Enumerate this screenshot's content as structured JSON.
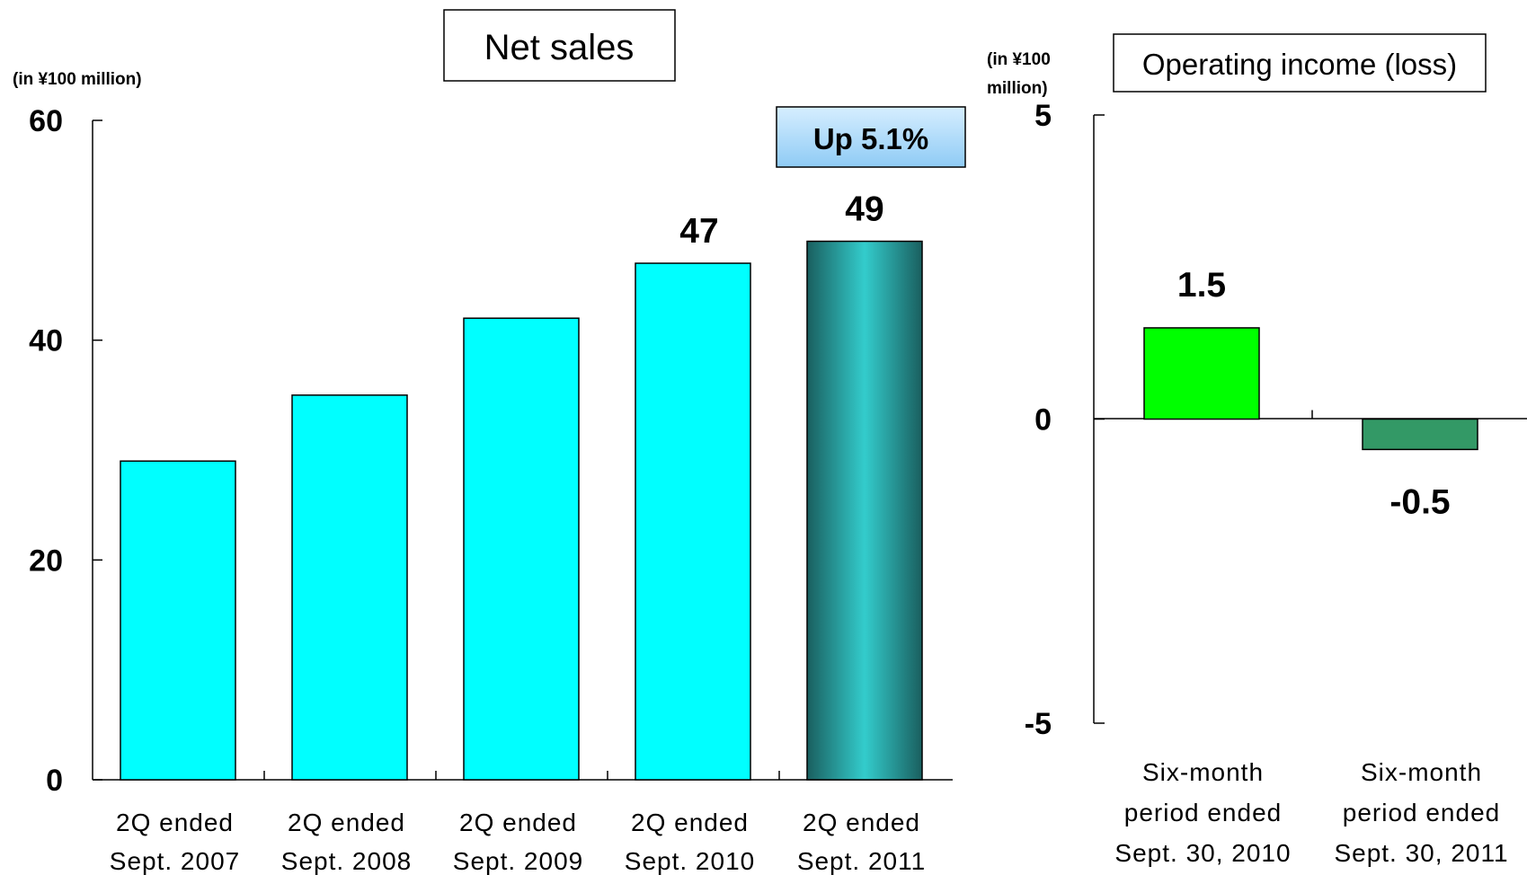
{
  "chart_data": [
    {
      "type": "bar",
      "title": "Net sales",
      "ylabel": "(in ¥100 million)",
      "ylim": [
        0,
        60
      ],
      "yticks": [
        "0",
        "20",
        "40",
        "60"
      ],
      "categories": [
        [
          "2Q ended",
          "Sept. 2007"
        ],
        [
          "2Q ended",
          "Sept. 2008"
        ],
        [
          "2Q ended",
          "Sept. 2009"
        ],
        [
          "2Q ended",
          "Sept. 2010"
        ],
        [
          "2Q ended",
          "Sept. 2011"
        ]
      ],
      "values": [
        29,
        35,
        42,
        47,
        49
      ],
      "data_labels": [
        "",
        "",
        "",
        "47",
        "49"
      ],
      "annotation": "Up 5.1%",
      "grid": false,
      "colors": {
        "bar": "#00FFFF",
        "highlight_dark": "#1A5F5F",
        "highlight_light": "#33CCCC",
        "badge_top": "#D6EEFF",
        "badge_bottom": "#8FCBF5"
      }
    },
    {
      "type": "bar",
      "title": "Operating income (loss)",
      "ylabel": "(in ¥100 million)",
      "ylabel_lines": [
        "(in ¥100",
        "million)"
      ],
      "ylim": [
        -5,
        5
      ],
      "yticks": [
        "-5",
        "0",
        "5"
      ],
      "categories": [
        [
          "Six-month",
          "period ended",
          "Sept. 30, 2010"
        ],
        [
          "Six-month",
          "period ended",
          "Sept. 30, 2011"
        ]
      ],
      "values": [
        1.5,
        -0.5
      ],
      "data_labels": [
        "1.5",
        "-0.5"
      ],
      "grid": false,
      "colors": {
        "positive": "#00FF00",
        "negative": "#339966"
      }
    }
  ]
}
